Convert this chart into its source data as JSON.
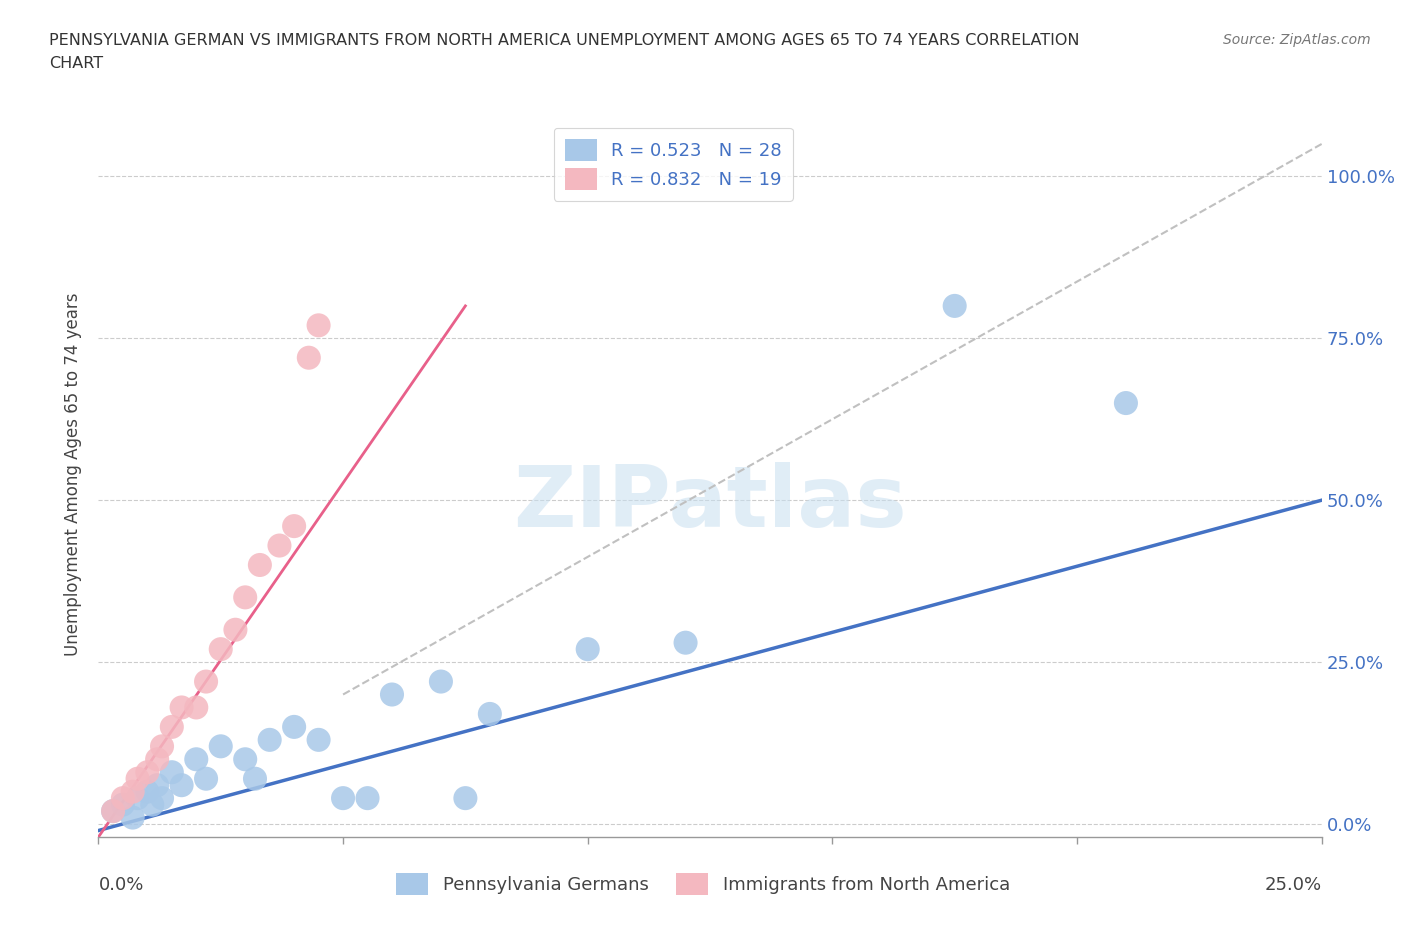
{
  "title_line1": "PENNSYLVANIA GERMAN VS IMMIGRANTS FROM NORTH AMERICA UNEMPLOYMENT AMONG AGES 65 TO 74 YEARS CORRELATION",
  "title_line2": "CHART",
  "source_text": "Source: ZipAtlas.com",
  "ylabel": "Unemployment Among Ages 65 to 74 years",
  "ytick_labels": [
    "0.0%",
    "25.0%",
    "50.0%",
    "75.0%",
    "100.0%"
  ],
  "ytick_values": [
    0.0,
    0.25,
    0.5,
    0.75,
    1.0
  ],
  "xlim": [
    0.0,
    0.25
  ],
  "ylim": [
    -0.02,
    1.1
  ],
  "bg_color": "#ffffff",
  "watermark_text": "ZIPatlas",
  "legend_labels": [
    "Pennsylvania Germans",
    "Immigrants from North America"
  ],
  "blue_color": "#a8c8e8",
  "pink_color": "#f4b8c0",
  "blue_line_color": "#4472c4",
  "pink_line_color": "#e8608a",
  "diagonal_color": "#c0c0c0",
  "legend_text_color": "#4472c4",
  "R_blue": 0.523,
  "N_blue": 28,
  "R_pink": 0.832,
  "N_pink": 19,
  "blue_scatter_x": [
    0.003,
    0.005,
    0.007,
    0.008,
    0.01,
    0.011,
    0.012,
    0.013,
    0.015,
    0.017,
    0.02,
    0.022,
    0.025,
    0.03,
    0.032,
    0.035,
    0.04,
    0.045,
    0.05,
    0.055,
    0.06,
    0.07,
    0.075,
    0.08,
    0.1,
    0.12,
    0.175,
    0.21
  ],
  "blue_scatter_y": [
    0.02,
    0.03,
    0.01,
    0.04,
    0.05,
    0.03,
    0.06,
    0.04,
    0.08,
    0.06,
    0.1,
    0.07,
    0.12,
    0.1,
    0.07,
    0.13,
    0.15,
    0.13,
    0.04,
    0.04,
    0.2,
    0.22,
    0.04,
    0.17,
    0.27,
    0.28,
    0.8,
    0.65
  ],
  "pink_scatter_x": [
    0.003,
    0.005,
    0.007,
    0.008,
    0.01,
    0.012,
    0.013,
    0.015,
    0.017,
    0.02,
    0.022,
    0.025,
    0.028,
    0.03,
    0.033,
    0.037,
    0.04,
    0.043,
    0.045
  ],
  "pink_scatter_y": [
    0.02,
    0.04,
    0.05,
    0.07,
    0.08,
    0.1,
    0.12,
    0.15,
    0.18,
    0.18,
    0.22,
    0.27,
    0.3,
    0.35,
    0.4,
    0.43,
    0.46,
    0.72,
    0.77
  ],
  "blue_line_x": [
    0.0,
    0.25
  ],
  "blue_line_y": [
    -0.01,
    0.5
  ],
  "pink_line_x": [
    0.0,
    0.075
  ],
  "pink_line_y": [
    -0.02,
    0.8
  ],
  "diag_line_x": [
    0.05,
    0.25
  ],
  "diag_line_y": [
    0.2,
    1.05
  ],
  "xtick_positions": [
    0.0,
    0.05,
    0.1,
    0.15,
    0.2,
    0.25
  ]
}
